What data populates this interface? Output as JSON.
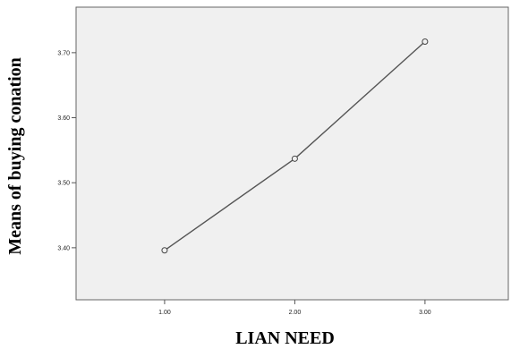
{
  "chart_data": {
    "type": "line",
    "title": "",
    "xlabel": "LIAN NEED",
    "ylabel": "Means of buying conation",
    "x": [
      1.0,
      2.0,
      3.0
    ],
    "x_tick_labels": [
      "1.00",
      "2.00",
      "3.00"
    ],
    "y_ticks": [
      3.4,
      3.5,
      3.6,
      3.7
    ],
    "y_tick_labels": [
      "3.40",
      "3.50",
      "3.60",
      "3.70"
    ],
    "xlim": [
      0.32,
      3.64
    ],
    "ylim": [
      3.32,
      3.77
    ],
    "series": [
      {
        "values": [
          3.396,
          3.537,
          3.717
        ],
        "marker": "circle",
        "color": "#555555"
      }
    ],
    "grid": false,
    "legend": "none",
    "plot_background": "#f0f0f0",
    "frame_color": "#666666"
  }
}
